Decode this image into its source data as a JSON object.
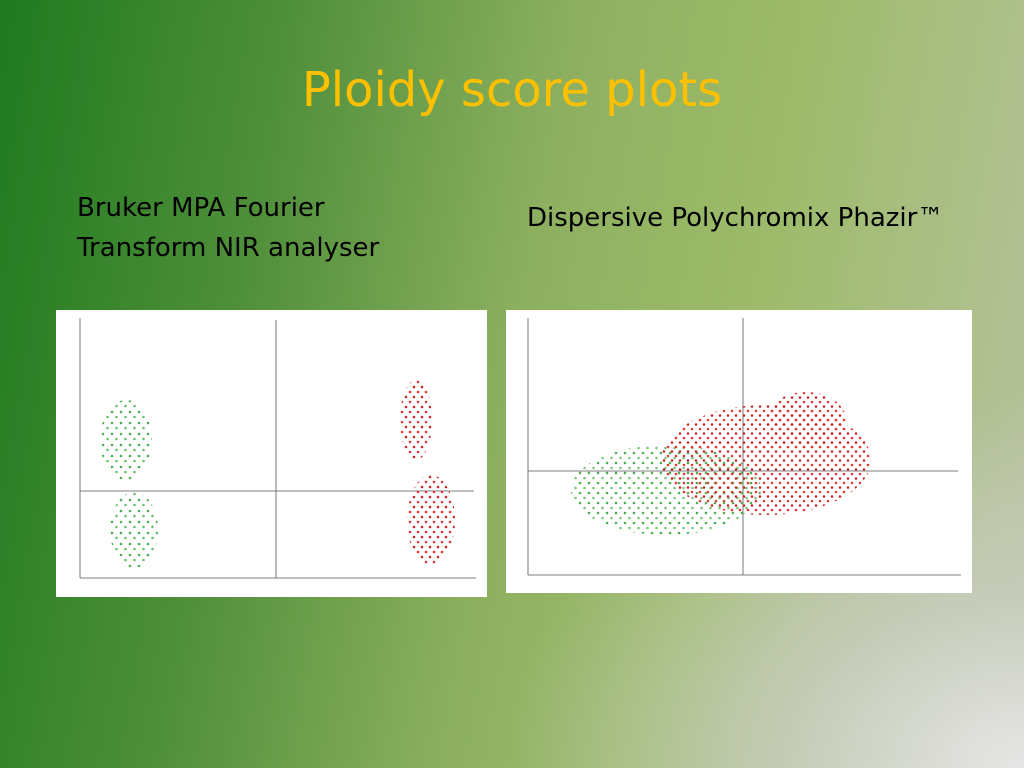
{
  "title": "Ploidy score plots",
  "left_caption": [
    "Bruker MPA Fourier",
    "Transform NIR analyser"
  ],
  "right_caption": "Dispersive  Polychromix Phazir™"
}
